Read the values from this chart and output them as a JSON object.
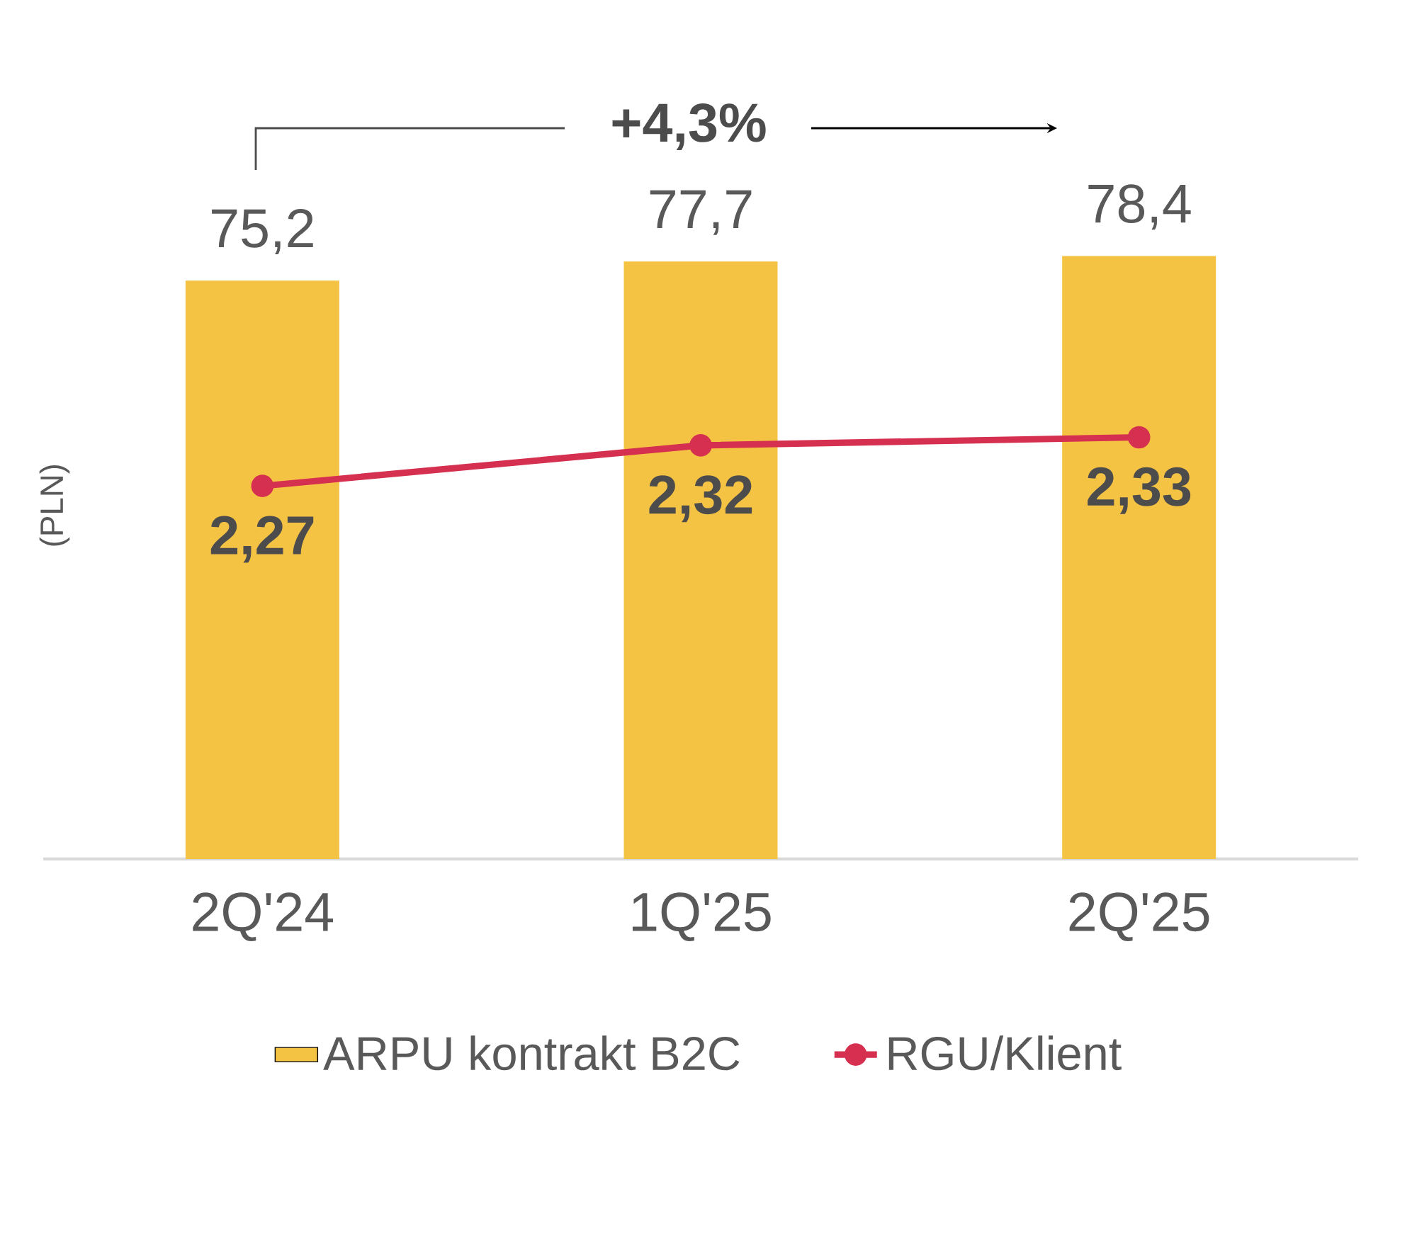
{
  "chart_data": {
    "type": "bar",
    "ylabel": "(PLN)",
    "categories": [
      "2Q'24",
      "1Q'25",
      "2Q'25"
    ],
    "series": [
      {
        "name": "ARPU kontrakt B2C",
        "color": "#f4c344",
        "values": [
          75.2,
          77.7,
          78.4
        ],
        "value_labels": [
          "75,2",
          "77,7",
          "78,4"
        ]
      },
      {
        "name": "RGU/Klient",
        "type": "line",
        "axis": "y2",
        "color": "#d63050",
        "marker": "circle",
        "values": [
          2.27,
          2.32,
          2.33
        ],
        "value_labels": [
          "2,27",
          "2,32",
          "2,33"
        ]
      }
    ],
    "tick_labels": "x",
    "legend": "bottom",
    "annotations": [
      "+4,3%"
    ]
  }
}
